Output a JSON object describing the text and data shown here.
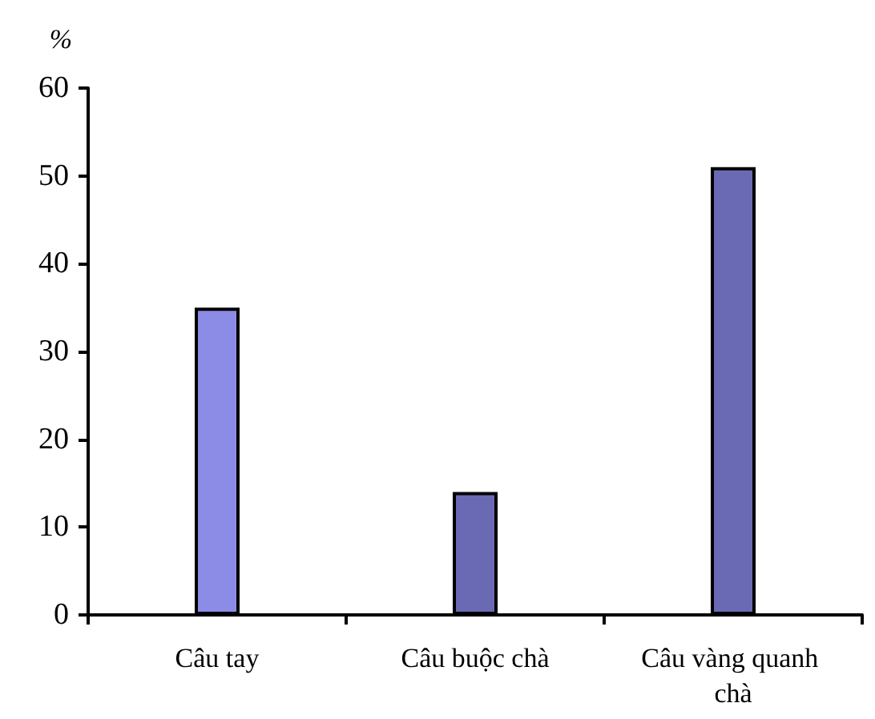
{
  "chart_data": {
    "type": "bar",
    "ylabel": "%",
    "categories": [
      "Câu tay",
      "Câu buộc chà",
      "Câu vàng quanh chà"
    ],
    "values": [
      35,
      14,
      51
    ],
    "colors": [
      "#8c8ce6",
      "#6a6ab4",
      "#6a6ab4"
    ],
    "ylim": [
      0,
      60
    ],
    "yticks": [
      0,
      10,
      20,
      30,
      40,
      50,
      60
    ]
  }
}
